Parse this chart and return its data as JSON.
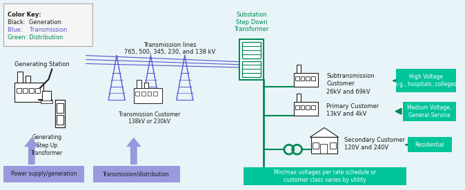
{
  "bg_color": "#e8f4f8",
  "color_black": "#1a1a1a",
  "color_blue": "#5555cc",
  "color_blue_light": "#8888dd",
  "color_blue_fill": "#9999dd",
  "color_green": "#008855",
  "color_teal": "#00c49a",
  "color_legend_box": "#f5f5f5",
  "legend_title": "Color Key:",
  "legend_black": "Black:  Generation",
  "legend_blue": "Blue:    Transmission",
  "legend_green": "Green: Distribution",
  "trans_lines_label": "Transmission lines\n765, 500, 345, 230, and 138 kV",
  "gen_station_label": "Generating Station",
  "gen_transformer_label": "Generating\nStep Up\nTransformer",
  "trans_customer_label": "Transmission Customer\n138kV or 230kV",
  "substation_label": "Substation\nStep Down\nTransformer",
  "subtrans_label": "Subtransmission\nCustomer\n26kV and 69kV",
  "primary_label": "Primary Customer\n13kV and 4kV",
  "secondary_label": "Secondary Customer\n120V and 240V",
  "high_voltage_label": "High Voltage\ne.g., hospitals, colleges",
  "medium_voltage_label": "Medium Voltage,\nGeneral Service",
  "residential_label": "Residential",
  "power_supply_label": "Power supply/generation",
  "trans_dist_label": "Transmission/distribution",
  "bottom_note": "Min/max voltages per rate schedule or\ncustomer class varies by utility"
}
